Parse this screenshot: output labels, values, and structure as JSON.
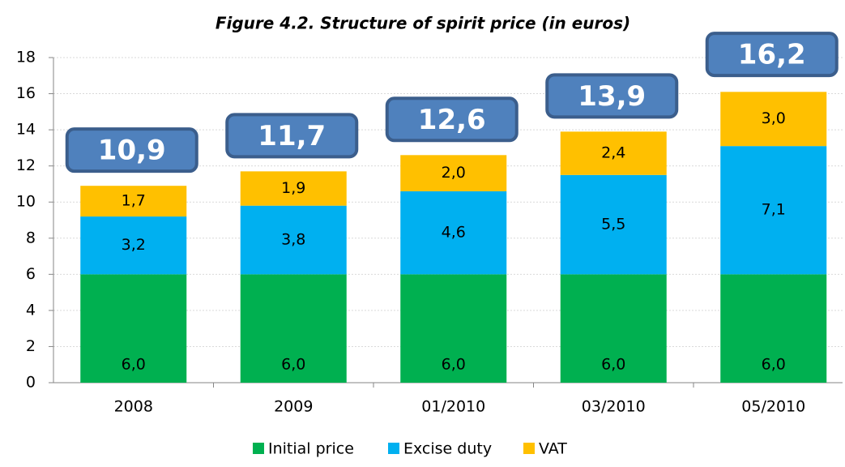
{
  "chart_data": {
    "type": "stacked-bar",
    "title": "Figure 4.2. Structure of spirit price (in euros)",
    "categories": [
      "2008",
      "2009",
      "01/2010",
      "03/2010",
      "05/2010"
    ],
    "series": [
      {
        "name": "Initial price",
        "color": "#00b050",
        "values": [
          6.0,
          6.0,
          6.0,
          6.0,
          6.0
        ],
        "value_labels": [
          "6,0",
          "6,0",
          "6,0",
          "6,0",
          "6,0"
        ]
      },
      {
        "name": "Excise duty",
        "color": "#00b0f0",
        "values": [
          3.2,
          3.8,
          4.6,
          5.5,
          7.1
        ],
        "value_labels": [
          "3,2",
          "3,8",
          "4,6",
          "5,5",
          "7,1"
        ]
      },
      {
        "name": "VAT",
        "color": "#ffc000",
        "values": [
          1.7,
          1.9,
          2.0,
          2.4,
          3.0
        ],
        "value_labels": [
          "1,7",
          "1,9",
          "2,0",
          "2,4",
          "3,0"
        ]
      }
    ],
    "totals": {
      "values": [
        10.9,
        11.7,
        12.6,
        13.9,
        16.2
      ],
      "value_labels": [
        "10,9",
        "11,7",
        "12,6",
        "13,9",
        "16,2"
      ],
      "color": "#4f81bd"
    },
    "ylim": [
      0,
      18
    ],
    "yticks": [
      0,
      2,
      4,
      6,
      8,
      10,
      12,
      14,
      16,
      18
    ],
    "grid": true,
    "legend": "bottom"
  }
}
